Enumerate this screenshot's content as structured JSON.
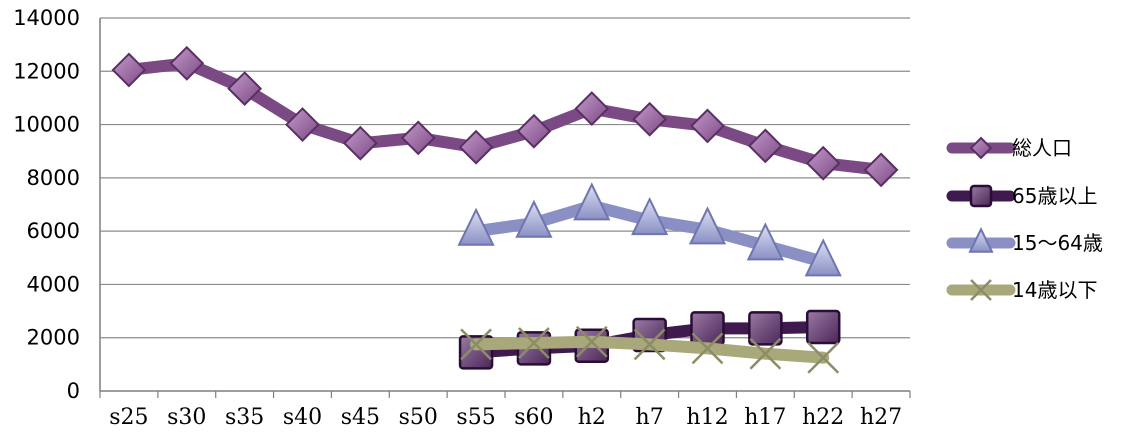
{
  "chart_data": {
    "type": "line",
    "categories": [
      "s25",
      "s30",
      "s35",
      "s40",
      "s45",
      "s50",
      "s55",
      "s60",
      "h2",
      "h7",
      "h12",
      "h17",
      "h22",
      "h27"
    ],
    "ylim": [
      0,
      14000
    ],
    "yticks": [
      0,
      2000,
      4000,
      6000,
      8000,
      10000,
      12000,
      14000
    ],
    "grid": true,
    "legend_position": "right",
    "series": [
      {
        "name": "総人口",
        "marker": "diamond",
        "color": "#7b4a84",
        "values": [
          12050,
          12300,
          11350,
          10000,
          9300,
          9500,
          9150,
          9750,
          10600,
          10200,
          9950,
          9200,
          8550,
          8300
        ]
      },
      {
        "name": "65歳以上",
        "marker": "square",
        "color": "#3f1a4f",
        "values": [
          null,
          null,
          null,
          null,
          null,
          null,
          1450,
          1600,
          1700,
          2100,
          2350,
          2350,
          2400,
          null
        ]
      },
      {
        "name": "15〜64歳",
        "marker": "triangle",
        "color": "#8a90c4",
        "values": [
          null,
          null,
          null,
          null,
          null,
          null,
          6000,
          6300,
          6950,
          6400,
          6050,
          5450,
          4850,
          null
        ]
      },
      {
        "name": "14歳以下",
        "marker": "x",
        "color": "#a8a87a",
        "values": [
          null,
          null,
          null,
          null,
          null,
          null,
          1750,
          1800,
          1850,
          1750,
          1600,
          1400,
          1250,
          null
        ]
      }
    ]
  }
}
